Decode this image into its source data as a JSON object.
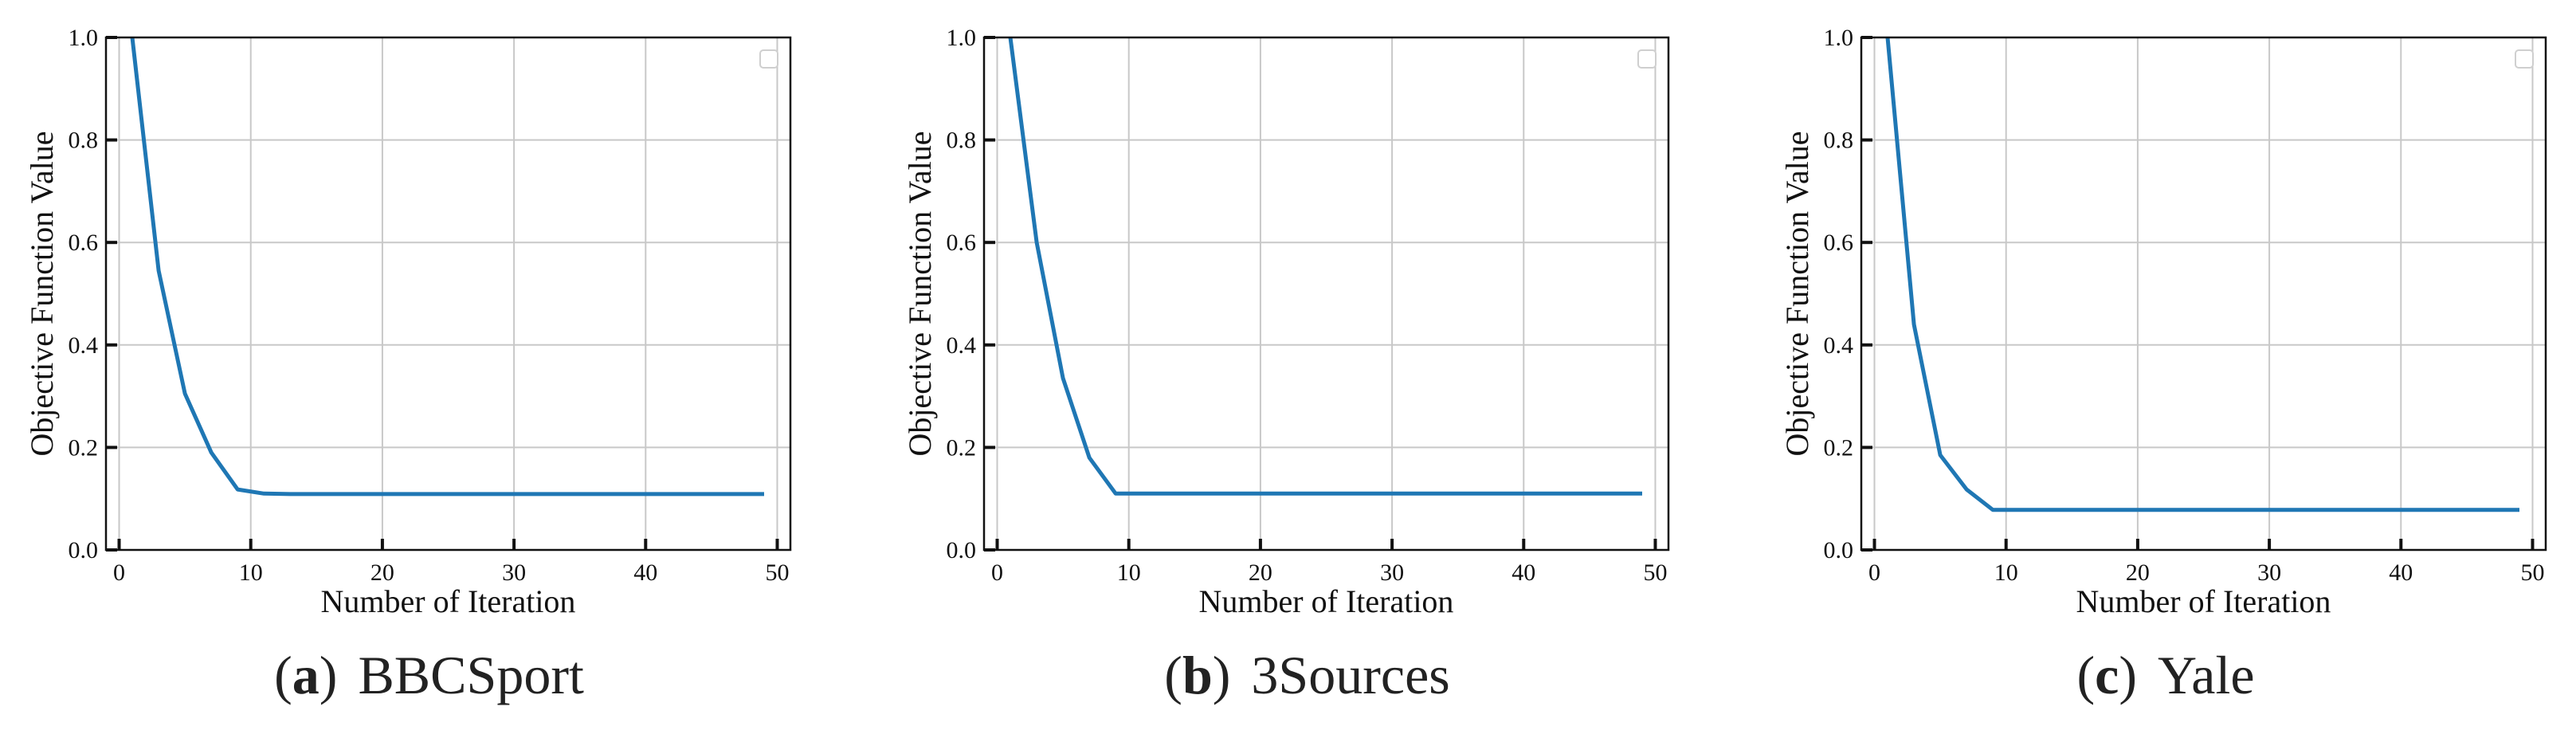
{
  "chart_data": [
    {
      "type": "line",
      "caption_letter": "a",
      "caption_name": "BBCSport",
      "xlabel": "Number of Iteration",
      "ylabel": "Objective Function Value",
      "xlim": [
        -1,
        51
      ],
      "ylim": [
        0.0,
        1.0
      ],
      "xticks": [
        "0",
        "10",
        "20",
        "30",
        "40",
        "50"
      ],
      "yticks": [
        "0.0",
        "0.2",
        "0.4",
        "0.6",
        "0.8",
        "1.0"
      ],
      "grid": true,
      "legend": "top-right (empty)",
      "line_color": "#1f77b4",
      "x": [
        1,
        3,
        5,
        7,
        9,
        11,
        13,
        15,
        20,
        25,
        30,
        35,
        40,
        45,
        49
      ],
      "y": [
        1.0,
        0.545,
        0.305,
        0.19,
        0.118,
        0.11,
        0.109,
        0.109,
        0.109,
        0.109,
        0.109,
        0.109,
        0.109,
        0.109,
        0.109
      ]
    },
    {
      "type": "line",
      "caption_letter": "b",
      "caption_name": "3Sources",
      "xlabel": "Number of Iteration",
      "ylabel": "Objective Function Value",
      "xlim": [
        -1,
        51
      ],
      "ylim": [
        0.0,
        1.0
      ],
      "xticks": [
        "0",
        "10",
        "20",
        "30",
        "40",
        "50"
      ],
      "yticks": [
        "0.0",
        "0.2",
        "0.4",
        "0.6",
        "0.8",
        "1.0"
      ],
      "grid": true,
      "legend": "top-right (empty)",
      "line_color": "#1f77b4",
      "x": [
        1,
        3,
        5,
        7,
        9,
        11,
        15,
        20,
        25,
        30,
        35,
        40,
        45,
        49
      ],
      "y": [
        1.0,
        0.6,
        0.335,
        0.18,
        0.11,
        0.11,
        0.11,
        0.11,
        0.11,
        0.11,
        0.11,
        0.11,
        0.11,
        0.11
      ]
    },
    {
      "type": "line",
      "caption_letter": "c",
      "caption_name": "Yale",
      "xlabel": "Number of Iteration",
      "ylabel": "Objective Function Value",
      "xlim": [
        -1,
        51
      ],
      "ylim": [
        0.0,
        1.0
      ],
      "xticks": [
        "0",
        "10",
        "20",
        "30",
        "40",
        "50"
      ],
      "yticks": [
        "0.0",
        "0.2",
        "0.4",
        "0.6",
        "0.8",
        "1.0"
      ],
      "grid": true,
      "legend": "top-right (empty)",
      "line_color": "#1f77b4",
      "x": [
        1,
        3,
        5,
        7,
        9,
        11,
        15,
        20,
        25,
        30,
        35,
        40,
        45,
        49
      ],
      "y": [
        1.0,
        0.44,
        0.185,
        0.118,
        0.078,
        0.078,
        0.078,
        0.078,
        0.078,
        0.078,
        0.078,
        0.078,
        0.078,
        0.078
      ]
    }
  ]
}
